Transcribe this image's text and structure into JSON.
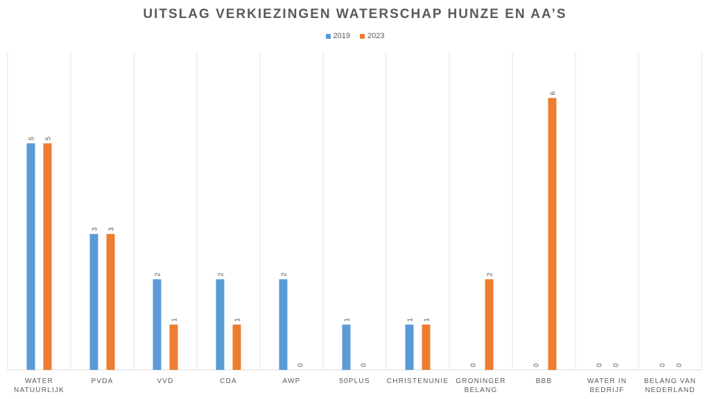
{
  "chart_data": {
    "type": "bar",
    "title": "UITSLAG VERKIEZINGEN WATERSCHAP HUNZE EN AA’S",
    "categories": [
      [
        "WATER",
        "NATUURLIJK"
      ],
      [
        "PVDA"
      ],
      [
        "VVD"
      ],
      [
        "CDA"
      ],
      [
        "AWP"
      ],
      [
        "50PLUS"
      ],
      [
        "CHRISTENUNIE"
      ],
      [
        "GRONINGER",
        "BELANG"
      ],
      [
        "BBB"
      ],
      [
        "WATER IN",
        "BEDRIJF"
      ],
      [
        "BELANG VAN",
        "NEDERLAND"
      ]
    ],
    "series": [
      {
        "name": "2019",
        "color": "#5B9BD5",
        "values": [
          5,
          3,
          2,
          2,
          2,
          1,
          1,
          0,
          0,
          0,
          0
        ]
      },
      {
        "name": "2023",
        "color": "#ED7D31",
        "values": [
          5,
          3,
          1,
          1,
          0,
          0,
          1,
          2,
          6,
          0,
          0
        ]
      }
    ],
    "ylim": [
      0,
      7
    ],
    "grid": "vertical category separators",
    "legend": "top-center",
    "data_labels": true
  }
}
